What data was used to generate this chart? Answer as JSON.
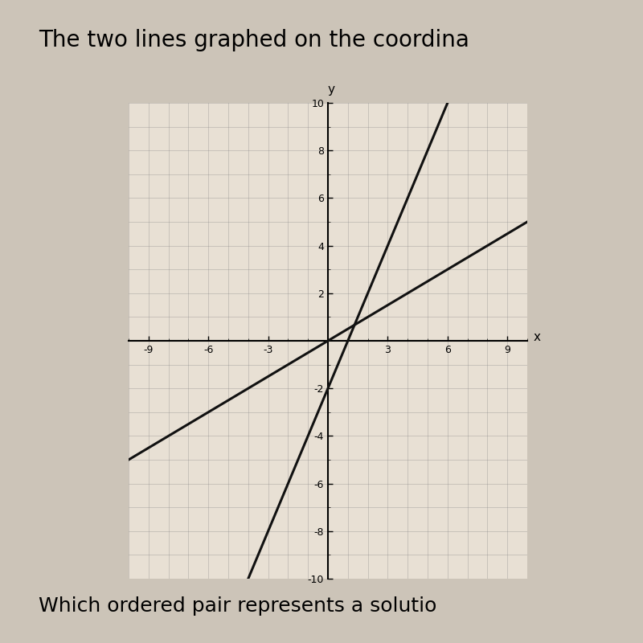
{
  "title": "The two lines graphed on the coordina",
  "subtitle": "Which ordered pair represents a solutio",
  "xlim": [
    -10,
    10
  ],
  "ylim": [
    -10,
    10
  ],
  "xticks": [
    -9,
    -6,
    -3,
    3,
    6,
    9
  ],
  "yticks": [
    -10,
    -8,
    -6,
    -4,
    -2,
    2,
    4,
    6,
    8,
    10
  ],
  "xlabel": "x",
  "ylabel": "y",
  "line1_slope": 0.5,
  "line1_intercept": 0,
  "line2_slope": 2.0,
  "line2_intercept": -2,
  "line_color": "#111111",
  "line_linewidth": 2.2,
  "background_color": "#ccc4b8",
  "grid_color": "#888888",
  "plot_bg_color": "#e8e0d4",
  "box_edge_color": "#555555",
  "title_fontsize": 20,
  "subtitle_fontsize": 18,
  "tick_fontsize": 9,
  "axis_label_fontsize": 11
}
